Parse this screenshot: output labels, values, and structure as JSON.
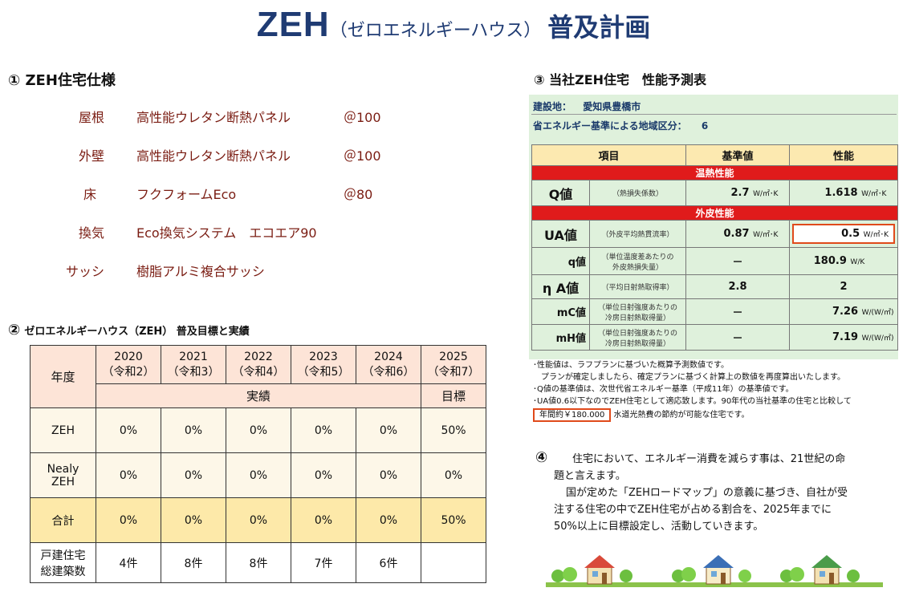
{
  "title": {
    "main": "ZEH",
    "sub": "（ゼロエネルギーハウス）",
    "plan": "普及計画"
  },
  "section1": {
    "heading": "① ZEH住宅仕様",
    "items": [
      {
        "name": "屋根",
        "spec": "高性能ウレタン断熱パネル",
        "value": "＠100"
      },
      {
        "name": "外壁",
        "spec": "高性能ウレタン断熱パネル",
        "value": "＠100"
      },
      {
        "name": "床",
        "spec": "フクフォームEco",
        "value": "＠80"
      },
      {
        "name": "換気",
        "spec": "Eco換気システム　エコエア90",
        "value": ""
      },
      {
        "name": "サッシ",
        "spec": "樹脂アルミ複合サッシ",
        "value": ""
      }
    ]
  },
  "section2": {
    "heading": "②",
    "heading_text": "ゼロエネルギーハウス（ZEH） 普及目標と実績",
    "table": {
      "year_label": "年度",
      "years": [
        {
          "year": "2020",
          "era": "（令和2）"
        },
        {
          "year": "2021",
          "era": "（令和3）"
        },
        {
          "year": "2022",
          "era": "（令和4）"
        },
        {
          "year": "2023",
          "era": "（令和5）"
        },
        {
          "year": "2024",
          "era": "（令和6）"
        },
        {
          "year": "2025",
          "era": "（令和7）"
        }
      ],
      "actual_label": "実績",
      "target_label": "目標",
      "rows": [
        {
          "label": "ZEH",
          "values": [
            "0%",
            "0%",
            "0%",
            "0%",
            "0%",
            "50%"
          ]
        },
        {
          "label": "Nealy\nZEH",
          "label1": "Nealy",
          "label2": "ZEH",
          "values": [
            "0%",
            "0%",
            "0%",
            "0%",
            "0%",
            "0%"
          ]
        },
        {
          "label": "合計",
          "values": [
            "0%",
            "0%",
            "0%",
            "0%",
            "0%",
            "50%"
          ]
        },
        {
          "label1": "戸建住宅",
          "label2": "総建築数",
          "values": [
            "4件",
            "8件",
            "8件",
            "7件",
            "6件",
            ""
          ]
        }
      ]
    }
  },
  "section3": {
    "heading": "③ 当社ZEH住宅　性能予測表",
    "site_label": "建設地：",
    "site_value": "愛知県豊橋市",
    "region_label": "省エネルギー基準による地域区分：",
    "region_value": "6",
    "headers": {
      "item": "項目",
      "standard": "基準値",
      "performance": "性能"
    },
    "group1": "温熱性能",
    "q": {
      "name": "Q値",
      "desc": "（熱損失係数）",
      "standard": "2.7",
      "standard_unit": "W/㎡･K",
      "perf": "1.618",
      "perf_unit": "W/㎡･K"
    },
    "group2": "外皮性能",
    "ua": {
      "name": "UA値",
      "desc": "（外皮平均熱貫流率）",
      "standard": "0.87",
      "standard_unit": "W/㎡･K",
      "perf": "0.5",
      "perf_unit": "W/㎡･K"
    },
    "qs": {
      "name": "q値",
      "desc1": "（単位温度差あたりの",
      "desc2": "外皮熱損失量）",
      "standard": "－",
      "perf": "180.9",
      "perf_unit": "W/K"
    },
    "eta": {
      "name": "η A値",
      "desc": "（平均日射熱取得率）",
      "standard": "2.8",
      "perf": "2"
    },
    "mc": {
      "name": "mC値",
      "desc1": "（単位日射強度あたりの",
      "desc2": "冷房日射熱取得量）",
      "standard": "－",
      "perf": "7.26",
      "perf_unit": "W/(W/㎡)"
    },
    "mh": {
      "name": "mH値",
      "desc1": "（単位日射強度あたりの",
      "desc2": "冷房日射熱取得量）",
      "standard": "－",
      "perf": "7.19",
      "perf_unit": "W/(W/㎡)"
    },
    "notes": [
      "･性能値は、ラフプランに基づいた概算予測数値です。",
      "　プランが確定しましたら、確定プランに基づく計算上の数値を再度算出いたします。",
      "･Q値の基準値は、次世代省エネルギー基準（平成11年）の基準値です。",
      "･UA値0.6以下なのでZEH住宅として適応致します。90年代の当社基準の住宅と比較して"
    ],
    "saving_box": "年間約￥180.000",
    "saving_text": "水道光熱費の節約が可能な住宅です。"
  },
  "section4": {
    "number": "④",
    "lines": [
      "住宅において、エネルギー消費を減らす事は、21世紀の命",
      "題と言えます。",
      "国が定めた「ZEHロードマップ」の意義に基づき、自社が受",
      "注する住宅の中でZEH住宅が占める割合を、2025年までに",
      "50%以上に目標設定し、活動していきます。"
    ]
  },
  "colors": {
    "title": "#1f3b73",
    "spec_text": "#7a1c12",
    "red_bar": "#e01b1b",
    "table_pink": "#fde4d7",
    "table_gold": "#fde9a9",
    "perf_bg": "#dff1dc"
  }
}
